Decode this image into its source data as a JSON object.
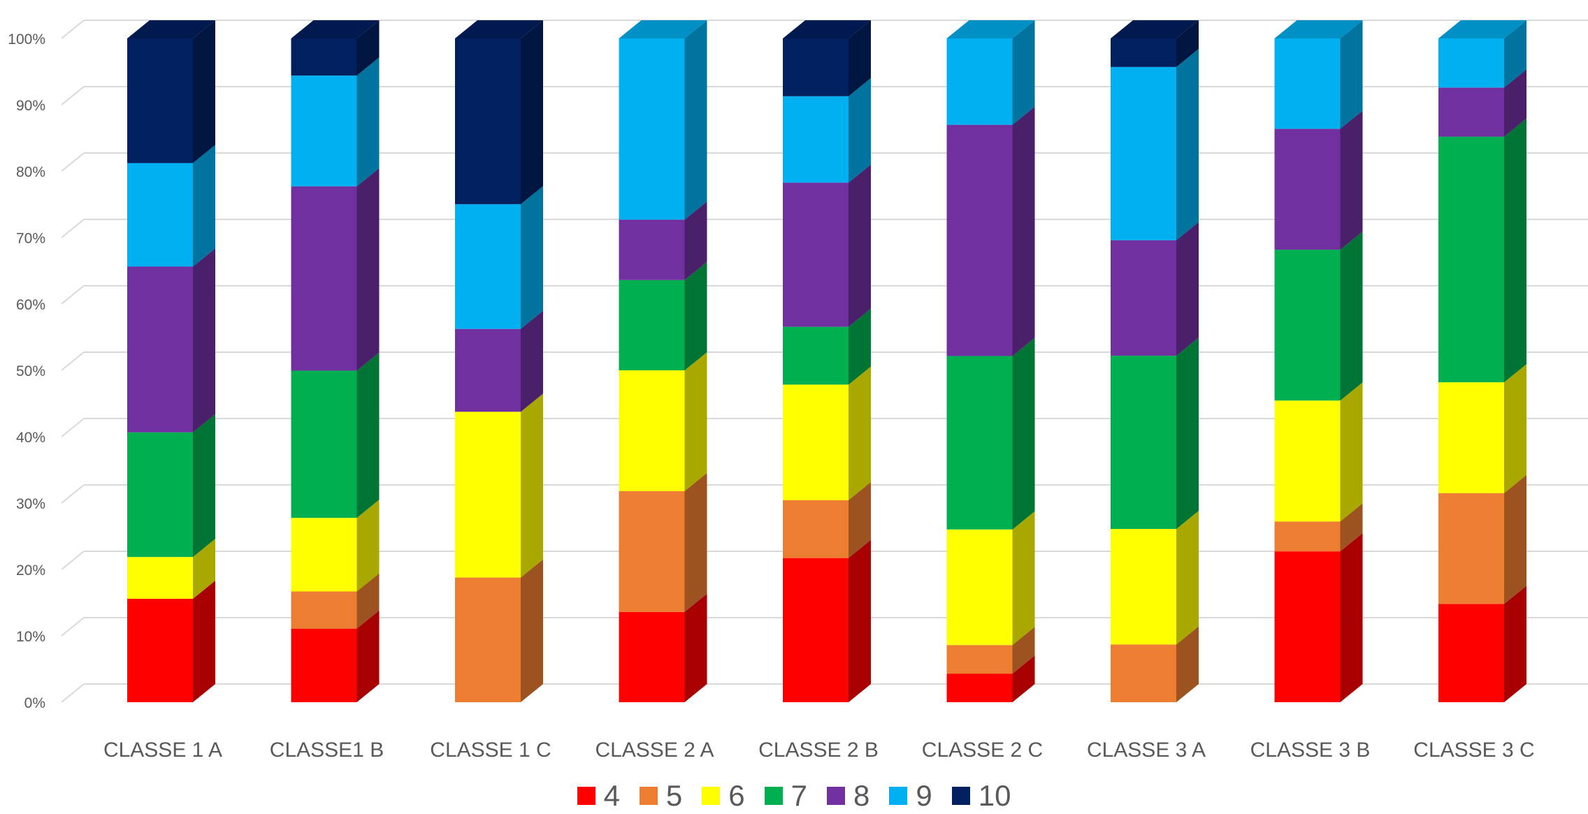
{
  "chart_data": {
    "type": "bar",
    "stacking": "percent",
    "three_d": true,
    "categories": [
      "CLASSE 1 A",
      "CLASSE1 B",
      "CLASSE 1 C",
      "CLASSE 2 A",
      "CLASSE 2 B",
      "CLASSE 2 C",
      "CLASSE 3 A",
      "CLASSE 3 B",
      "CLASSE 3 C"
    ],
    "y_ticks": [
      "0%",
      "10%",
      "20%",
      "30%",
      "40%",
      "50%",
      "60%",
      "70%",
      "80%",
      "90%",
      "100%"
    ],
    "ylim": [
      0,
      100
    ],
    "grid": true,
    "legend_position": "bottom",
    "series": [
      {
        "name": "4",
        "color": "#FF0000",
        "values": [
          15.6,
          11.1,
          0,
          13.6,
          21.7,
          4.3,
          0,
          22.7,
          14.8
        ]
      },
      {
        "name": "5",
        "color": "#ED7D31",
        "values": [
          0,
          5.6,
          18.8,
          18.2,
          8.7,
          4.3,
          8.7,
          4.5,
          16.7
        ]
      },
      {
        "name": "6",
        "color": "#FFFF00",
        "values": [
          6.3,
          11.1,
          25.0,
          18.2,
          17.4,
          17.4,
          17.4,
          18.2,
          16.7
        ]
      },
      {
        "name": "7",
        "color": "#00B050",
        "values": [
          18.8,
          22.2,
          0,
          13.6,
          8.7,
          26.1,
          26.1,
          22.7,
          37.0
        ]
      },
      {
        "name": "8",
        "color": "#7030A0",
        "values": [
          25.0,
          27.8,
          12.5,
          9.1,
          21.7,
          34.8,
          17.4,
          18.2,
          7.4
        ]
      },
      {
        "name": "9",
        "color": "#00B0F0",
        "values": [
          15.6,
          16.7,
          18.8,
          27.3,
          13.0,
          13.0,
          26.1,
          13.6,
          7.4
        ]
      },
      {
        "name": "10",
        "color": "#002060",
        "values": [
          18.8,
          5.6,
          25.0,
          0,
          8.7,
          0,
          4.3,
          0,
          0
        ]
      }
    ]
  }
}
